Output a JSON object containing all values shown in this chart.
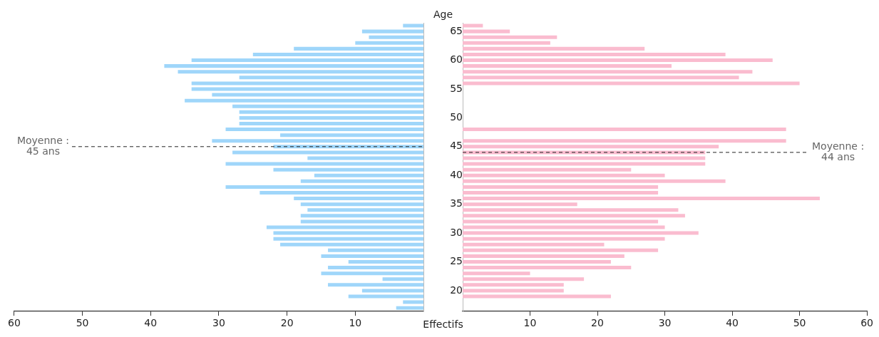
{
  "chart_data": [
    {
      "type": "bar",
      "orientation": "horizontal",
      "x": [
        66,
        65,
        64,
        63,
        62,
        61,
        60,
        59,
        58,
        57,
        56,
        55,
        54,
        53,
        52,
        51,
        50,
        49,
        48,
        47,
        46,
        45,
        44,
        43,
        42,
        41,
        40,
        39,
        38,
        37,
        36,
        35,
        34,
        33,
        32,
        31,
        30,
        29,
        28,
        27,
        26,
        25,
        24,
        23,
        22,
        21,
        20,
        19,
        18,
        17
      ],
      "series": [
        {
          "color": "#9fd6fa",
          "values": [
            3,
            9,
            8,
            10,
            19,
            25,
            34,
            38,
            36,
            27,
            34,
            34,
            31,
            35,
            28,
            27,
            27,
            27,
            29,
            21,
            31,
            22,
            28,
            17,
            29,
            22,
            16,
            18,
            29,
            24,
            19,
            18,
            17,
            18,
            18,
            23,
            22,
            22,
            21,
            14,
            15,
            11,
            14,
            15,
            6,
            14,
            9,
            11,
            3,
            4
          ]
        }
      ],
      "xlim": [
        60,
        0
      ],
      "xticks": [
        60,
        50,
        40,
        30,
        20,
        10
      ],
      "ylim": [
        16.5,
        66.5
      ],
      "yticks": [
        20,
        25,
        30,
        35,
        40,
        45,
        50,
        55,
        60,
        65
      ],
      "tick_labels": "x",
      "ref_lines": [
        {
          "axis": "y",
          "value": 45,
          "label": "Moyenne : 45 ans",
          "line_style": "dashed"
        }
      ]
    },
    {
      "type": "bar",
      "orientation": "horizontal",
      "x": [
        66,
        65,
        64,
        63,
        62,
        61,
        60,
        59,
        58,
        57,
        56,
        55,
        54,
        53,
        52,
        51,
        50,
        49,
        48,
        47,
        46,
        45,
        44,
        43,
        42,
        41,
        40,
        39,
        38,
        37,
        36,
        35,
        34,
        33,
        32,
        31,
        30,
        29,
        28,
        27,
        26,
        25,
        24,
        23,
        22,
        21,
        20,
        19
      ],
      "series": [
        {
          "color": "#fabccf",
          "values": [
            3,
            7,
            14,
            13,
            27,
            39,
            46,
            31,
            43,
            41,
            50,
            null,
            null,
            null,
            null,
            null,
            null,
            null,
            48,
            null,
            48,
            38,
            36,
            36,
            36,
            25,
            30,
            39,
            29,
            29,
            53,
            17,
            32,
            33,
            29,
            30,
            35,
            30,
            21,
            29,
            24,
            22,
            25,
            10,
            18,
            15,
            15,
            22
          ]
        }
      ],
      "xlim": [
        0,
        60
      ],
      "xticks": [
        10,
        20,
        30,
        40,
        50,
        60
      ],
      "ylim": [
        16.5,
        66.5
      ],
      "yticks": [
        20,
        25,
        30,
        35,
        40,
        45,
        50,
        55,
        60,
        65
      ],
      "xlabel": "Effectifs",
      "ylabel": "Age",
      "ref_lines": [
        {
          "axis": "y",
          "value": 44,
          "label": "Moyenne : 44 ans",
          "line_style": "dashed"
        }
      ]
    }
  ]
}
